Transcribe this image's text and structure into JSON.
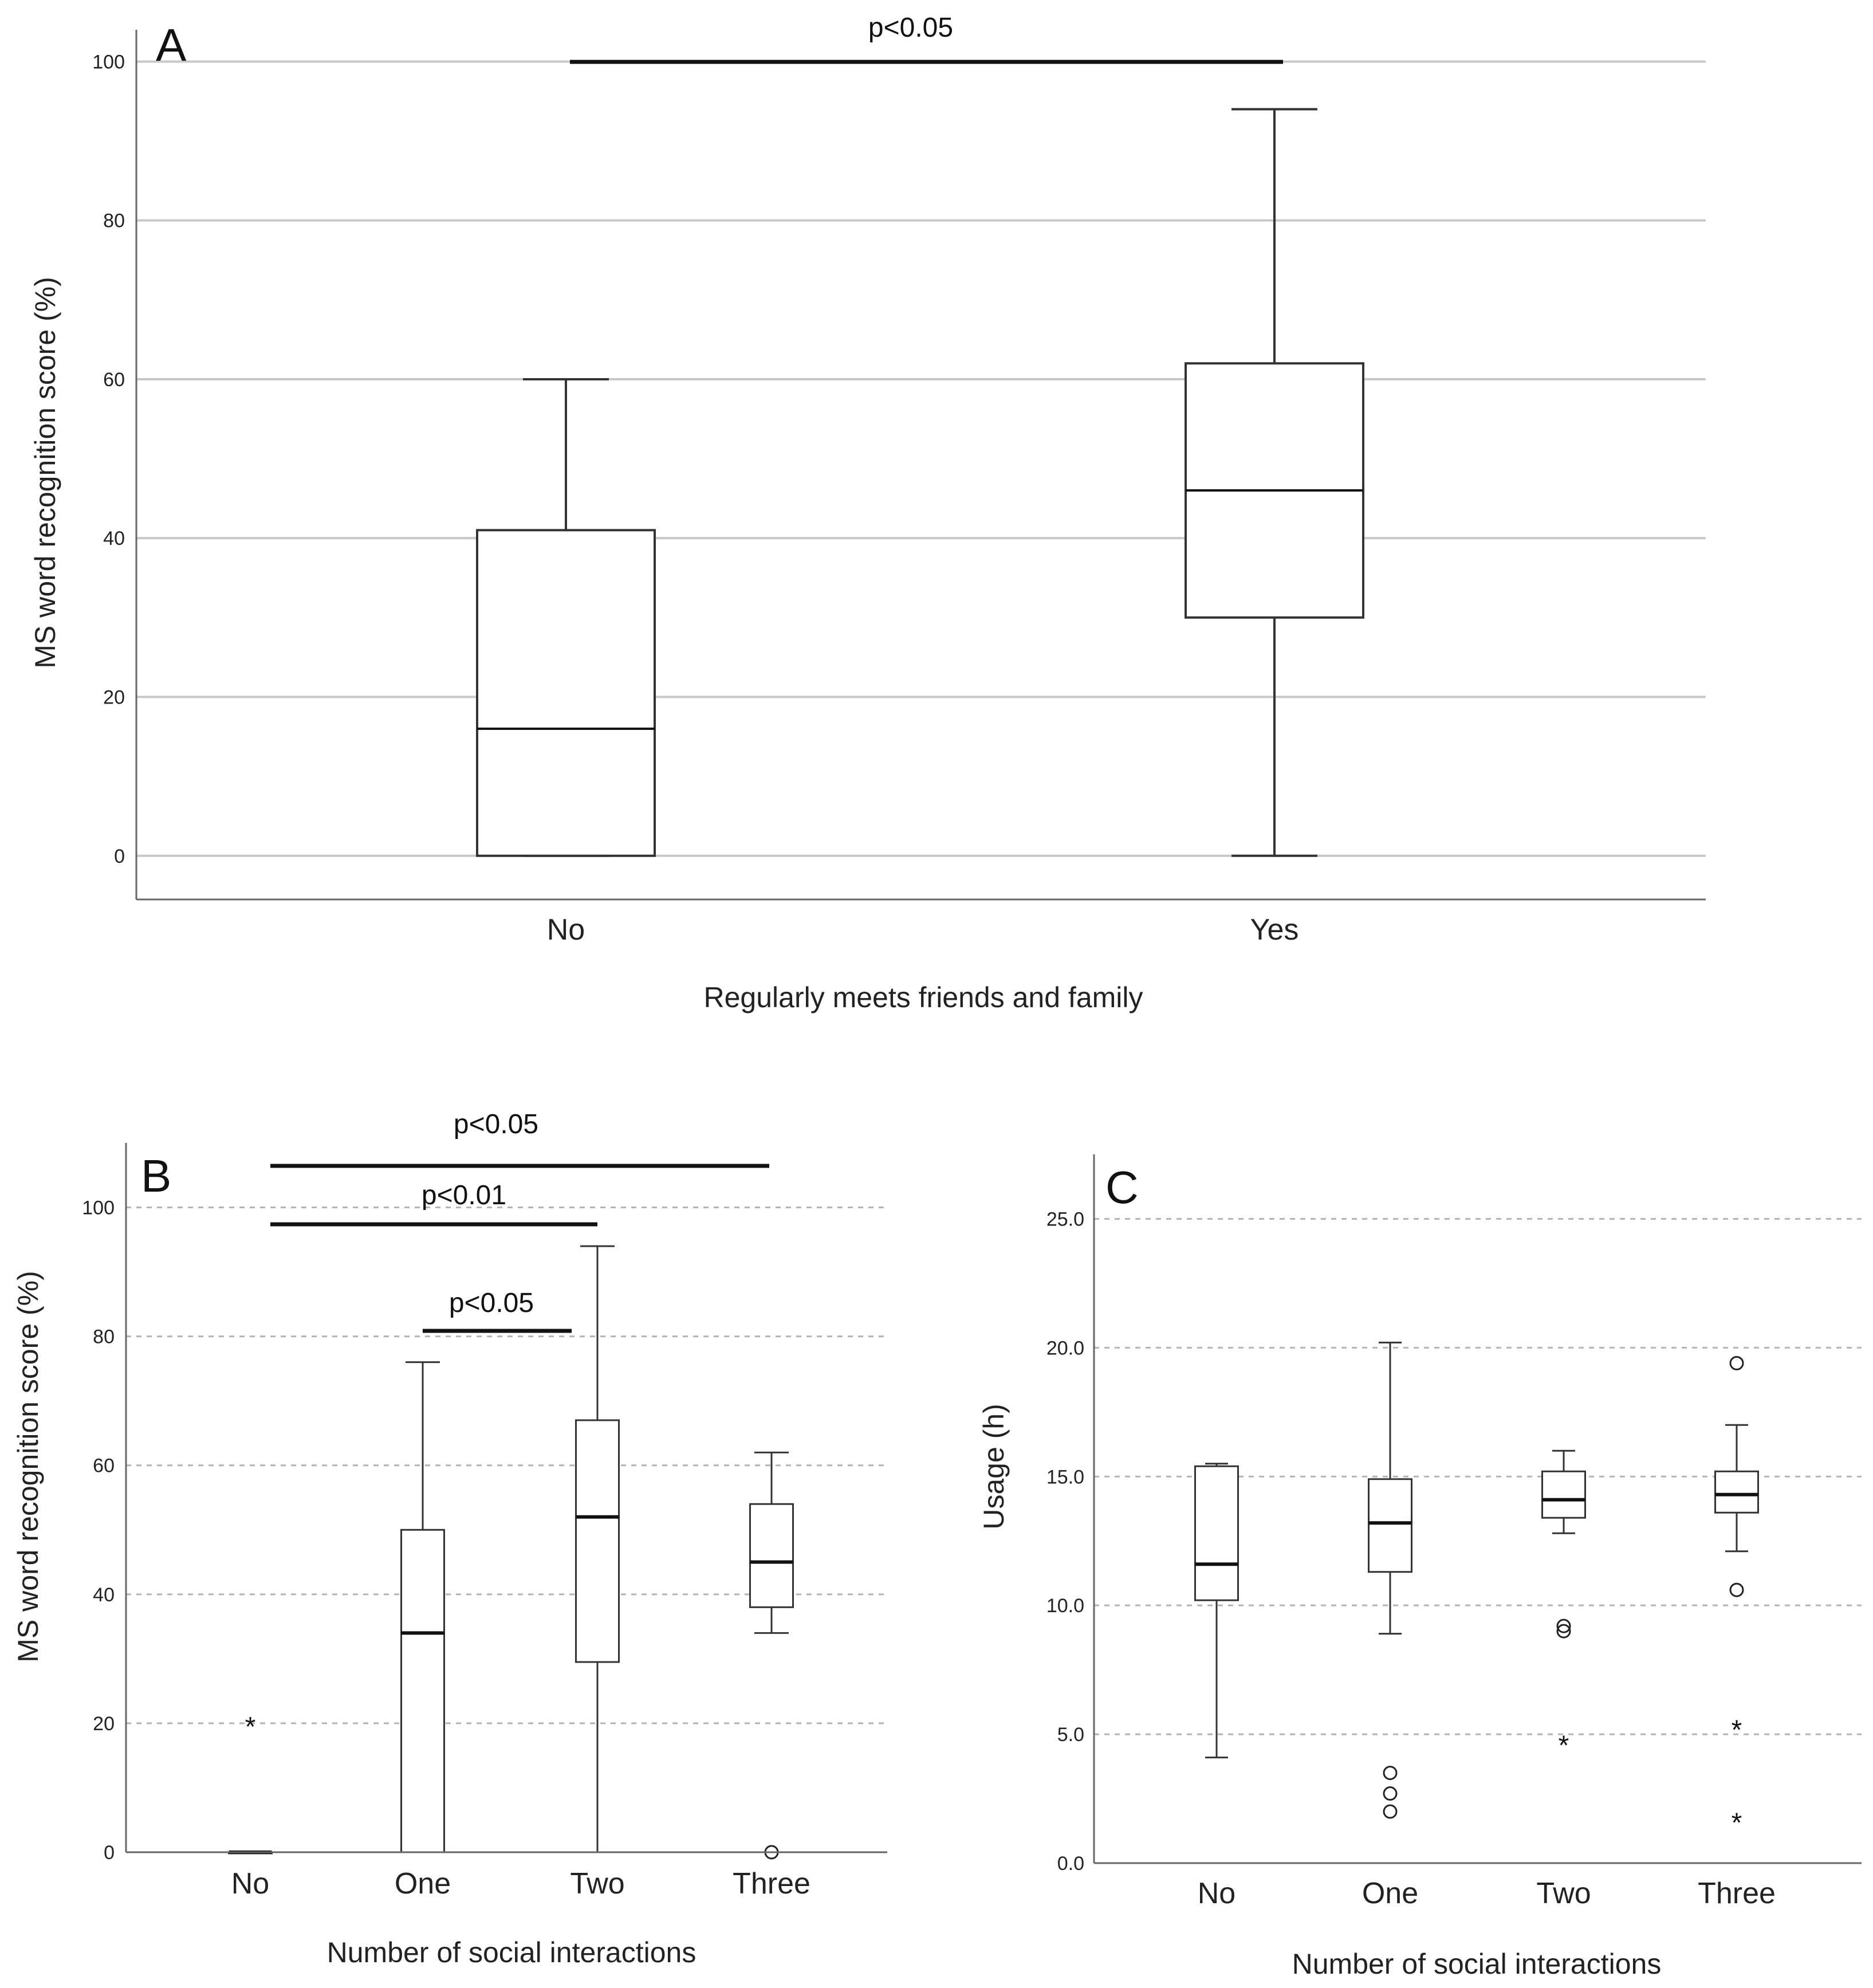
{
  "figure": {
    "background": "#ffffff",
    "colors": {
      "box": "#333333",
      "grid": "#c8c8c8",
      "sig": "#111111"
    }
  },
  "chart_data": [
    {
      "panel": "A",
      "type": "box",
      "xlabel": "Regularly meets friends and family",
      "ylabel": "MS word recognition score (%)",
      "ylim": [
        -5.5,
        104
      ],
      "yticks": [
        0,
        20,
        40,
        60,
        80,
        100
      ],
      "ytick_labels": [
        "0",
        "20",
        "40",
        "60",
        "80",
        "100"
      ],
      "grid": "solid",
      "categories": [
        "No",
        "Yes"
      ],
      "boxes": [
        {
          "category": "No",
          "whisker_low": 0,
          "q1": 0,
          "median": 16,
          "q3": 41,
          "whisker_high": 60,
          "outliers": []
        },
        {
          "category": "Yes",
          "whisker_low": 0,
          "q1": 30,
          "median": 46,
          "q3": 62,
          "whisker_high": 94,
          "outliers": []
        }
      ],
      "significance": [
        {
          "from": "No",
          "to": "Yes",
          "label": "p<0.05"
        }
      ]
    },
    {
      "panel": "B",
      "type": "box",
      "xlabel": "Number of social interactions",
      "ylabel": "MS word recognition score (%)",
      "ylim": [
        0,
        110
      ],
      "yticks": [
        0,
        20,
        40,
        60,
        80,
        100
      ],
      "ytick_labels": [
        "0",
        "20",
        "40",
        "60",
        "80",
        "100"
      ],
      "grid": "dashed",
      "categories": [
        "No",
        "One",
        "Two",
        "Three"
      ],
      "boxes": [
        {
          "category": "No",
          "whisker_low": 0,
          "q1": 0,
          "median": 0,
          "q3": 0,
          "whisker_high": 0,
          "outliers": [
            {
              "value": 20,
              "marker": "star"
            }
          ]
        },
        {
          "category": "One",
          "whisker_low": 0,
          "q1": 0,
          "median": 34,
          "q3": 50,
          "whisker_high": 76,
          "outliers": []
        },
        {
          "category": "Two",
          "whisker_low": 0,
          "q1": 29.5,
          "median": 52,
          "q3": 67,
          "whisker_high": 94,
          "outliers": []
        },
        {
          "category": "Three",
          "whisker_low": 34,
          "q1": 38,
          "median": 45,
          "q3": 54,
          "whisker_high": 62,
          "outliers": [
            {
              "value": 0,
              "marker": "circle"
            }
          ]
        }
      ],
      "significance": [
        {
          "from": "No",
          "to": "Three",
          "label": "p<0.05"
        },
        {
          "from": "No",
          "to": "Two",
          "label": "p<0.01"
        },
        {
          "from": "One",
          "to": "Two",
          "label": "p<0.05"
        }
      ]
    },
    {
      "panel": "C",
      "type": "box",
      "xlabel": "Number of social interactions",
      "ylabel": "Usage (h)",
      "ylim": [
        0,
        27.5
      ],
      "yticks": [
        0,
        5,
        10,
        15,
        20,
        25
      ],
      "ytick_labels": [
        "0.0",
        "5.0",
        "10.0",
        "15.0",
        "20.0",
        "25.0"
      ],
      "grid": "dashed",
      "categories": [
        "No",
        "One",
        "Two",
        "Three"
      ],
      "boxes": [
        {
          "category": "No",
          "whisker_low": 4.1,
          "q1": 10.2,
          "median": 11.6,
          "q3": 15.4,
          "whisker_high": 15.5,
          "outliers": []
        },
        {
          "category": "One",
          "whisker_low": 8.9,
          "q1": 11.3,
          "median": 13.2,
          "q3": 14.9,
          "whisker_high": 20.2,
          "outliers": [
            {
              "value": 3.5,
              "marker": "circle"
            },
            {
              "value": 2.7,
              "marker": "circle"
            },
            {
              "value": 2.0,
              "marker": "circle"
            }
          ]
        },
        {
          "category": "Two",
          "whisker_low": 12.8,
          "q1": 13.4,
          "median": 14.1,
          "q3": 15.2,
          "whisker_high": 16.0,
          "outliers": [
            {
              "value": 9.2,
              "marker": "circle"
            },
            {
              "value": 9.0,
              "marker": "circle"
            },
            {
              "value": 4.7,
              "marker": "star"
            }
          ]
        },
        {
          "category": "Three",
          "whisker_low": 12.1,
          "q1": 13.6,
          "median": 14.3,
          "q3": 15.2,
          "whisker_high": 17.0,
          "outliers": [
            {
              "value": 19.4,
              "marker": "circle"
            },
            {
              "value": 10.6,
              "marker": "circle"
            },
            {
              "value": 5.3,
              "marker": "star"
            },
            {
              "value": 1.7,
              "marker": "star"
            }
          ]
        }
      ],
      "significance": []
    }
  ]
}
